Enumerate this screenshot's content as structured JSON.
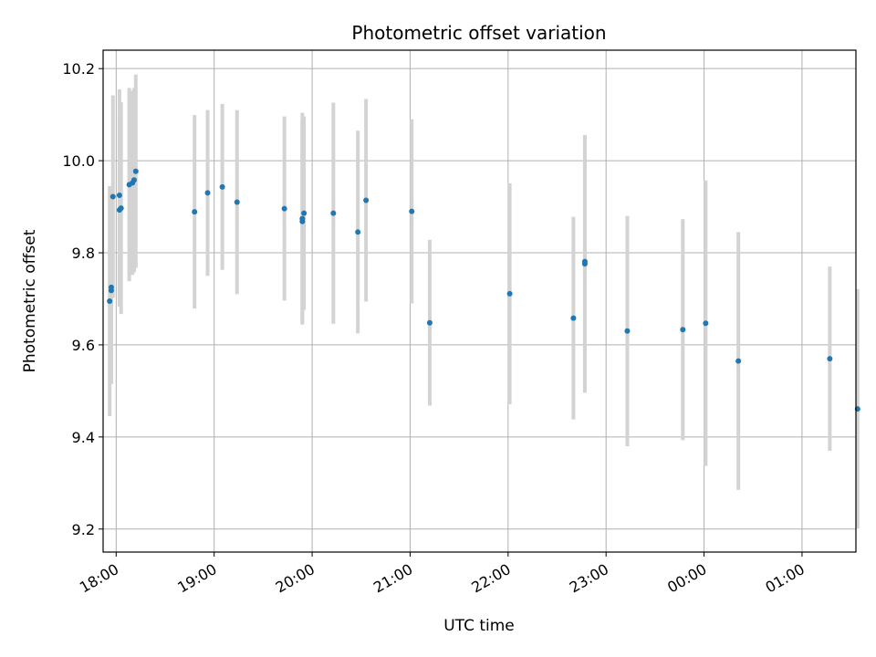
{
  "chart_data": {
    "type": "scatter",
    "title": "Photometric offset variation",
    "xlabel": "UTC time",
    "ylabel": "Photometric offset",
    "xlim": [
      "17:52",
      "01:33"
    ],
    "ylim": [
      9.15,
      10.24
    ],
    "x_ticks": [
      "18:00",
      "19:00",
      "20:00",
      "21:00",
      "22:00",
      "23:00",
      "00:00",
      "01:00"
    ],
    "y_ticks": [
      "9.2",
      "9.4",
      "9.6",
      "9.8",
      "10.0",
      "10.2"
    ],
    "y_tick_values": [
      9.2,
      9.4,
      9.6,
      9.8,
      10.0,
      10.2
    ],
    "grid": true,
    "point_color": "#1f77b4",
    "errorbar_color": "#d3d3d3",
    "series": [
      {
        "x": [
          "17:56",
          "17:57",
          "17:57",
          "17:58",
          "18:02",
          "18:02",
          "18:03",
          "18:08",
          "18:10",
          "18:11",
          "18:12",
          "18:48",
          "18:56",
          "19:05",
          "19:14",
          "19:43",
          "19:54",
          "19:54",
          "19:55",
          "20:13",
          "20:28",
          "20:33",
          "21:01",
          "21:12",
          "22:01",
          "22:40",
          "22:47",
          "22:47",
          "23:13",
          "23:47",
          "24:01",
          "24:21",
          "25:17",
          "25:34"
        ],
        "y": [
          9.695,
          9.718,
          9.725,
          9.922,
          9.925,
          9.893,
          9.897,
          9.948,
          9.952,
          9.958,
          9.977,
          9.889,
          9.93,
          9.943,
          9.91,
          9.896,
          9.868,
          9.874,
          9.886,
          9.886,
          9.845,
          9.914,
          9.89,
          9.648,
          9.711,
          9.658,
          9.781,
          9.776,
          9.63,
          9.633,
          9.647,
          9.565,
          9.57,
          9.461
        ],
        "err": [
          0.25,
          0.19,
          0.21,
          0.22,
          0.23,
          0.21,
          0.23,
          0.21,
          0.2,
          0.2,
          0.21,
          0.21,
          0.18,
          0.18,
          0.2,
          0.2,
          0.22,
          0.23,
          0.21,
          0.24,
          0.22,
          0.22,
          0.2,
          0.18,
          0.24,
          0.22,
          0.27,
          0.28,
          0.25,
          0.24,
          0.31,
          0.28,
          0.2,
          0.26
        ]
      }
    ]
  }
}
